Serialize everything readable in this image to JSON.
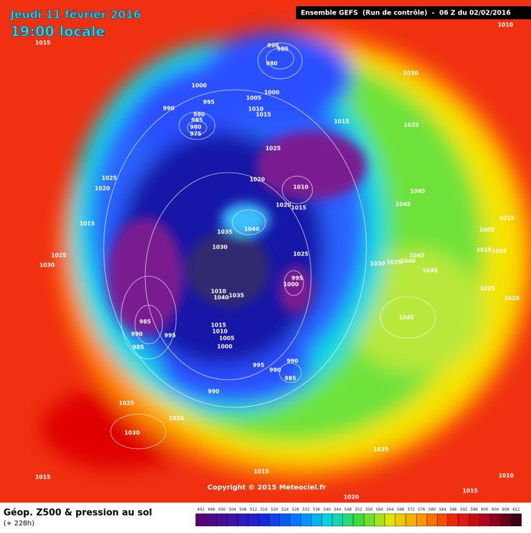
{
  "header": {
    "date": "Jeudi 11 février 2016",
    "time": "19:00 locale",
    "run": "Ensemble GEFS  (Run de contrôle)  -  06 Z du 02/02/2016"
  },
  "map": {
    "copyright": "Copyright © 2015 Meteociel.fr",
    "pressure_labels": [
      1015,
      990,
      985,
      980,
      1000,
      1000,
      995,
      990,
      1005,
      1010,
      1015,
      990,
      985,
      980,
      975,
      1030,
      1010,
      1015,
      1025,
      1025,
      1025,
      1020,
      1020,
      1010,
      1020,
      1015,
      1045,
      1045,
      1015,
      1035,
      1040,
      1030,
      1025,
      1005,
      1015,
      1015,
      1005,
      1025,
      1030,
      1045,
      1040,
      1035,
      1030,
      1045,
      995,
      1000,
      1025,
      1010,
      1010,
      1040,
      1035,
      1045,
      985,
      990,
      995,
      985,
      1015,
      1010,
      1005,
      1000,
      995,
      990,
      990,
      985,
      990,
      1025,
      1020,
      1030,
      1025,
      1015,
      1015,
      1010,
      1015,
      1020
    ]
  },
  "legend": {
    "title": "Géop. Z500 & pression au sol",
    "lead": "(+ 228h)",
    "scale": [
      492,
      496,
      500,
      504,
      508,
      512,
      516,
      520,
      524,
      528,
      532,
      536,
      540,
      544,
      548,
      552,
      556,
      560,
      564,
      568,
      572,
      576,
      580,
      584,
      588,
      592,
      596,
      600,
      604,
      608,
      612
    ]
  }
}
